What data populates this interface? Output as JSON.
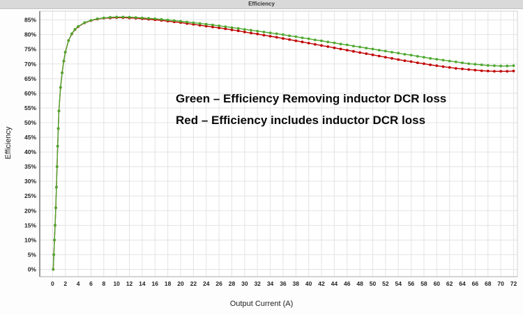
{
  "window": {
    "title": "Efficiency"
  },
  "chart_data": {
    "type": "line",
    "title": "Efficiency",
    "xlabel": "Output Current (A)",
    "ylabel": "Efficiency",
    "grid": true,
    "legend_position": "none",
    "xlim": [
      0,
      72
    ],
    "ylim_percent": [
      0,
      85
    ],
    "x_ticks": [
      0,
      2,
      4,
      6,
      8,
      10,
      12,
      14,
      16,
      18,
      20,
      22,
      24,
      26,
      28,
      30,
      32,
      34,
      36,
      38,
      40,
      42,
      44,
      46,
      48,
      50,
      52,
      54,
      56,
      58,
      60,
      62,
      64,
      66,
      68,
      70,
      72
    ],
    "y_ticks": [
      0,
      5,
      10,
      15,
      20,
      25,
      30,
      35,
      40,
      45,
      50,
      55,
      60,
      65,
      70,
      75,
      80,
      85
    ],
    "annotations": [
      {
        "text": "Green – Efficiency Removing inductor DCR loss"
      },
      {
        "text": "Red – Efficiency includes inductor DCR loss"
      }
    ],
    "x": [
      0.1,
      0.2,
      0.3,
      0.4,
      0.5,
      0.6,
      0.7,
      0.8,
      0.9,
      1,
      1.25,
      1.5,
      1.75,
      2,
      2.5,
      3,
      3.5,
      4,
      5,
      6,
      7,
      8,
      9,
      10,
      11,
      12,
      13,
      14,
      15,
      16,
      17,
      18,
      19,
      20,
      21,
      22,
      23,
      24,
      25,
      26,
      27,
      28,
      29,
      30,
      31,
      32,
      33,
      34,
      35,
      36,
      37,
      38,
      39,
      40,
      41,
      42,
      43,
      44,
      45,
      46,
      47,
      48,
      49,
      50,
      51,
      52,
      53,
      54,
      55,
      56,
      57,
      58,
      59,
      60,
      61,
      62,
      63,
      64,
      65,
      66,
      67,
      68,
      69,
      70,
      71,
      72
    ],
    "series": [
      {
        "name": "Efficiency Removing inductor DCR loss",
        "color": "#4ea72e",
        "values": [
          0,
          5,
          10,
          15,
          21,
          28,
          35,
          42,
          48,
          54,
          62,
          67,
          71,
          74,
          78,
          80.3,
          81.8,
          82.8,
          84.1,
          84.9,
          85.4,
          85.7,
          85.9,
          86,
          86,
          85.95,
          85.85,
          85.7,
          85.55,
          85.4,
          85.2,
          85,
          84.8,
          84.55,
          84.3,
          84.05,
          83.8,
          83.55,
          83.3,
          83,
          82.7,
          82.4,
          82.1,
          81.8,
          81.5,
          81.2,
          80.9,
          80.6,
          80.3,
          80,
          79.6,
          79.3,
          78.9,
          78.6,
          78.2,
          77.9,
          77.5,
          77.2,
          76.8,
          76.5,
          76.1,
          75.8,
          75.4,
          75.1,
          74.7,
          74.4,
          74,
          73.7,
          73.3,
          73,
          72.6,
          72.3,
          71.9,
          71.6,
          71.3,
          71,
          70.7,
          70.4,
          70.1,
          69.9,
          69.7,
          69.5,
          69.4,
          69.3,
          69.3,
          69.4
        ]
      },
      {
        "name": "Efficiency includes inductor DCR loss",
        "color": "#c00000",
        "values": [
          0,
          5,
          10,
          15,
          21,
          28,
          35,
          42,
          48,
          54,
          62,
          67,
          71,
          74,
          78,
          80.2,
          81.7,
          82.7,
          84,
          84.8,
          85.3,
          85.6,
          85.7,
          85.8,
          85.8,
          85.7,
          85.6,
          85.4,
          85.25,
          85.05,
          84.85,
          84.6,
          84.35,
          84.1,
          83.8,
          83.5,
          83.2,
          82.9,
          82.6,
          82.3,
          82,
          81.6,
          81.3,
          80.9,
          80.55,
          80.2,
          79.8,
          79.45,
          79.1,
          78.7,
          78.3,
          77.9,
          77.5,
          77.1,
          76.7,
          76.3,
          75.9,
          75.5,
          75.1,
          74.7,
          74.3,
          73.9,
          73.5,
          73.1,
          72.7,
          72.3,
          71.9,
          71.5,
          71.1,
          70.8,
          70.4,
          70.1,
          69.7,
          69.4,
          69.1,
          68.8,
          68.5,
          68.3,
          68.1,
          67.9,
          67.7,
          67.6,
          67.5,
          67.5,
          67.5,
          67.6
        ]
      }
    ]
  },
  "style": {
    "gridline_color": "#e3e3e3",
    "axis_color": "#555555",
    "plot_background": "#ffffff"
  }
}
